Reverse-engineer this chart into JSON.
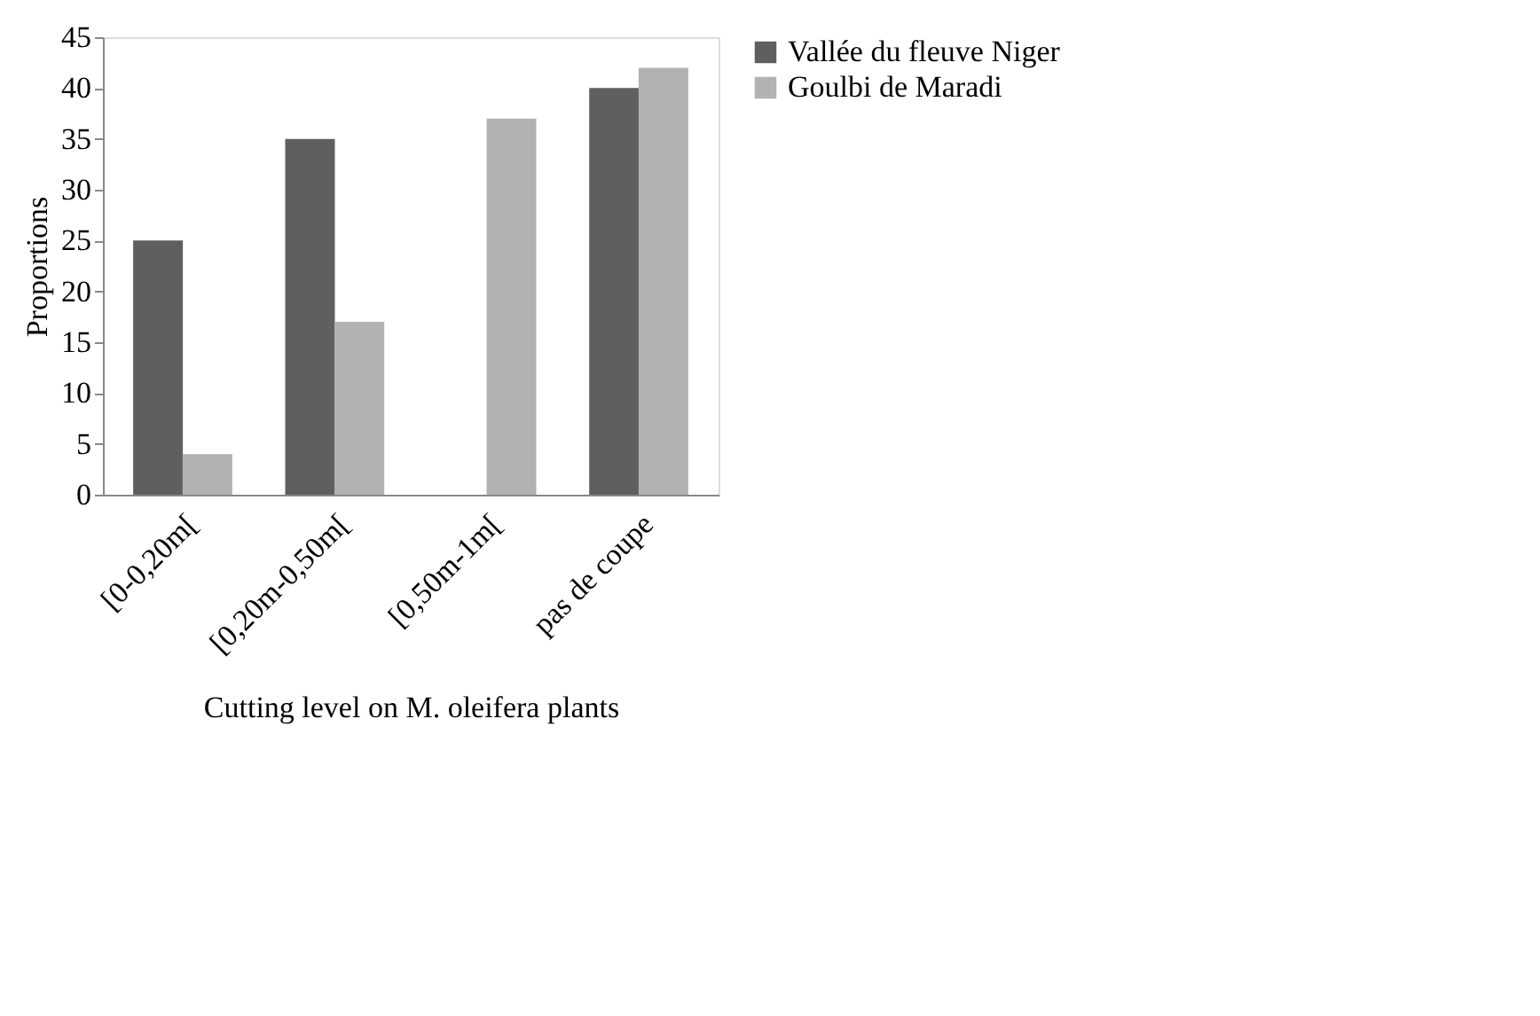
{
  "chart_data": {
    "type": "bar",
    "xlabel": "Cutting level on M. oleifera plants",
    "ylabel": "Proportions",
    "categories": [
      "[0-0,20m[",
      "[0,20m-0,50m[",
      "[0,50m-1m[",
      "pas de coupe"
    ],
    "series": [
      {
        "name": "Vallée du fleuve Niger",
        "color": "#5f5f5f",
        "values": [
          25,
          35,
          0,
          40
        ]
      },
      {
        "name": "Goulbi de Maradi",
        "color": "#b2b2b2",
        "values": [
          4,
          17,
          37,
          42
        ]
      }
    ],
    "ylim": [
      0,
      45
    ],
    "yticks": [
      0,
      5,
      10,
      15,
      20,
      25,
      30,
      35,
      40,
      45
    ],
    "grid": false,
    "legend": "right"
  }
}
